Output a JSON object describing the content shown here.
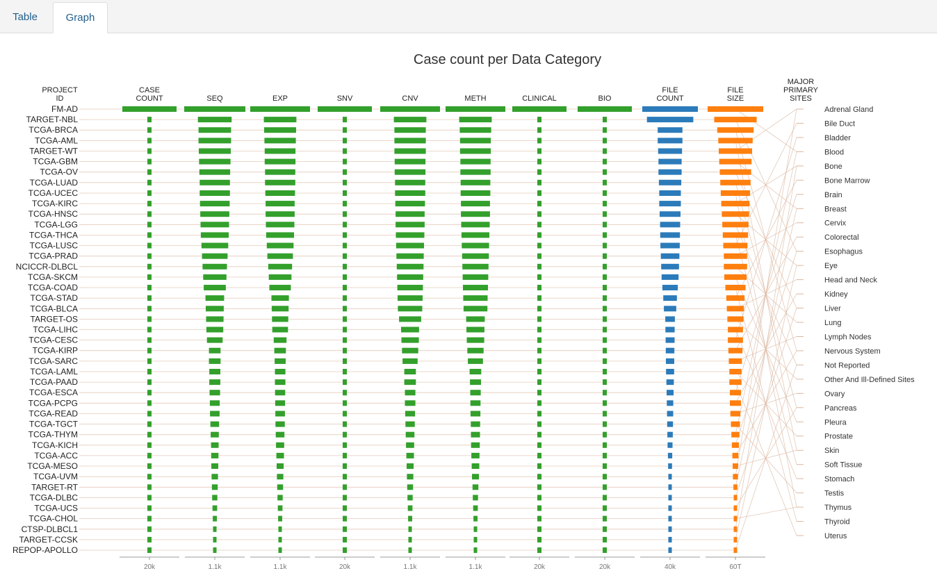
{
  "tabs": [
    {
      "label": "Table"
    },
    {
      "label": "Graph"
    }
  ],
  "chart_data": {
    "type": "parallel-coordinates",
    "title": "Case count per Data Category",
    "project_axis_title": [
      "PROJECT",
      "ID"
    ],
    "sites_axis_title": [
      "MAJOR",
      "PRIMARY",
      "SITES"
    ],
    "axes": [
      {
        "name": "CASE COUNT",
        "title": [
          "CASE",
          "COUNT"
        ],
        "color": "#33a02c",
        "scale_label": "20k"
      },
      {
        "name": "SEQ",
        "title": [
          "SEQ"
        ],
        "color": "#33a02c",
        "scale_label": "1.1k"
      },
      {
        "name": "EXP",
        "title": [
          "EXP"
        ],
        "color": "#33a02c",
        "scale_label": "1.1k"
      },
      {
        "name": "SNV",
        "title": [
          "SNV"
        ],
        "color": "#33a02c",
        "scale_label": "20k"
      },
      {
        "name": "CNV",
        "title": [
          "CNV"
        ],
        "color": "#33a02c",
        "scale_label": "1.1k"
      },
      {
        "name": "METH",
        "title": [
          "METH"
        ],
        "color": "#33a02c",
        "scale_label": "1.1k"
      },
      {
        "name": "CLINICAL",
        "title": [
          "CLINICAL"
        ],
        "color": "#33a02c",
        "scale_label": "20k"
      },
      {
        "name": "BIO",
        "title": [
          "BIO"
        ],
        "color": "#33a02c",
        "scale_label": "20k"
      },
      {
        "name": "FILE COUNT",
        "title": [
          "FILE",
          "COUNT"
        ],
        "color": "#2b7bba",
        "scale_label": "40k"
      },
      {
        "name": "FILE SIZE",
        "title": [
          "FILE",
          "SIZE"
        ],
        "color": "#ff7f0e",
        "scale_label": "60T"
      }
    ],
    "projects": [
      {
        "id": "FM-AD",
        "values": [
          18004,
          1100,
          1100,
          18004,
          1100,
          1100,
          18004,
          18004,
          36000,
          55
        ]
      },
      {
        "id": "TARGET-NBL",
        "values": [
          1120,
          580,
          560,
          1120,
          560,
          560,
          1120,
          1120,
          30000,
          42
        ]
      },
      {
        "id": "TCGA-BRCA",
        "values": [
          1098,
          560,
          550,
          1098,
          540,
          540,
          1098,
          1098,
          16000,
          36
        ]
      },
      {
        "id": "TCGA-AML",
        "values": [
          1000,
          560,
          540,
          1000,
          540,
          530,
          1000,
          1000,
          16000,
          34
        ]
      },
      {
        "id": "TARGET-WT",
        "values": [
          900,
          550,
          530,
          900,
          540,
          530,
          900,
          900,
          15500,
          33
        ]
      },
      {
        "id": "TCGA-GBM",
        "values": [
          850,
          540,
          530,
          850,
          530,
          520,
          850,
          850,
          15000,
          32
        ]
      },
      {
        "id": "TCGA-OV",
        "values": [
          800,
          530,
          520,
          800,
          530,
          520,
          800,
          800,
          15000,
          31
        ]
      },
      {
        "id": "TCGA-LUAD",
        "values": [
          780,
          520,
          520,
          780,
          520,
          510,
          780,
          780,
          14500,
          30
        ]
      },
      {
        "id": "TCGA-UCEC",
        "values": [
          760,
          520,
          510,
          760,
          520,
          510,
          760,
          760,
          14000,
          29
        ]
      },
      {
        "id": "TCGA-KIRC",
        "values": [
          740,
          510,
          500,
          740,
          510,
          500,
          740,
          740,
          14000,
          28
        ]
      },
      {
        "id": "TCGA-HNSC",
        "values": [
          720,
          500,
          500,
          720,
          500,
          500,
          720,
          720,
          13500,
          27
        ]
      },
      {
        "id": "TCGA-LGG",
        "values": [
          700,
          490,
          490,
          700,
          500,
          490,
          700,
          700,
          13000,
          26
        ]
      },
      {
        "id": "TCGA-THCA",
        "values": [
          680,
          480,
          480,
          680,
          490,
          480,
          680,
          680,
          12800,
          25
        ]
      },
      {
        "id": "TCGA-LUSC",
        "values": [
          660,
          460,
          460,
          660,
          480,
          470,
          660,
          660,
          12500,
          24
        ]
      },
      {
        "id": "TCGA-PRAD",
        "values": [
          640,
          440,
          440,
          640,
          470,
          460,
          640,
          640,
          12000,
          23
        ]
      },
      {
        "id": "NCICCR-DLBCL",
        "values": [
          620,
          420,
          410,
          620,
          460,
          450,
          620,
          620,
          11500,
          23
        ]
      },
      {
        "id": "TCGA-SKCM",
        "values": [
          600,
          400,
          390,
          600,
          450,
          440,
          600,
          600,
          11000,
          22
        ]
      },
      {
        "id": "TCGA-COAD",
        "values": [
          580,
          380,
          370,
          580,
          440,
          430,
          580,
          580,
          10000,
          20
        ]
      },
      {
        "id": "TCGA-STAD",
        "values": [
          560,
          320,
          300,
          560,
          430,
          420,
          560,
          560,
          8800,
          18
        ]
      },
      {
        "id": "TCGA-BLCA",
        "values": [
          540,
          310,
          290,
          540,
          420,
          410,
          540,
          540,
          8000,
          17
        ]
      },
      {
        "id": "TARGET-OS",
        "values": [
          520,
          300,
          280,
          520,
          380,
          320,
          520,
          520,
          6200,
          16
        ]
      },
      {
        "id": "TCGA-LIHC",
        "values": [
          500,
          290,
          270,
          500,
          310,
          310,
          500,
          500,
          6000,
          15
        ]
      },
      {
        "id": "TCGA-CESC",
        "values": [
          480,
          270,
          220,
          480,
          300,
          300,
          480,
          480,
          5800,
          15
        ]
      },
      {
        "id": "TCGA-KIRP",
        "values": [
          460,
          200,
          200,
          460,
          280,
          280,
          460,
          460,
          5600,
          14
        ]
      },
      {
        "id": "TCGA-SARC",
        "values": [
          440,
          200,
          190,
          440,
          260,
          260,
          440,
          440,
          5400,
          13
        ]
      },
      {
        "id": "TCGA-LAML",
        "values": [
          420,
          190,
          180,
          420,
          200,
          200,
          420,
          420,
          5200,
          12
        ]
      },
      {
        "id": "TCGA-PAAD",
        "values": [
          400,
          190,
          180,
          400,
          200,
          190,
          400,
          400,
          4800,
          12
        ]
      },
      {
        "id": "TCGA-ESCA",
        "values": [
          380,
          180,
          175,
          380,
          180,
          180,
          380,
          380,
          4500,
          11
        ]
      },
      {
        "id": "TCGA-PCPG",
        "values": [
          360,
          170,
          170,
          360,
          180,
          175,
          360,
          360,
          4200,
          11
        ]
      },
      {
        "id": "TCGA-READ",
        "values": [
          340,
          165,
          165,
          340,
          170,
          170,
          340,
          340,
          4000,
          10
        ]
      },
      {
        "id": "TCGA-TGCT",
        "values": [
          320,
          150,
          160,
          320,
          160,
          160,
          320,
          320,
          3800,
          9
        ]
      },
      {
        "id": "TCGA-THYM",
        "values": [
          300,
          140,
          150,
          300,
          150,
          155,
          300,
          300,
          3500,
          8
        ]
      },
      {
        "id": "TCGA-KICH",
        "values": [
          280,
          130,
          140,
          280,
          140,
          150,
          280,
          280,
          3200,
          7
        ]
      },
      {
        "id": "TCGA-ACC",
        "values": [
          260,
          125,
          130,
          260,
          130,
          140,
          260,
          260,
          2800,
          6
        ]
      },
      {
        "id": "TCGA-MESO",
        "values": [
          240,
          120,
          120,
          240,
          120,
          130,
          240,
          240,
          2500,
          5.5
        ]
      },
      {
        "id": "TCGA-UVM",
        "values": [
          220,
          110,
          110,
          220,
          110,
          120,
          220,
          220,
          2200,
          5
        ]
      },
      {
        "id": "TARGET-RT",
        "values": [
          200,
          100,
          100,
          200,
          100,
          100,
          200,
          200,
          1800,
          4
        ]
      },
      {
        "id": "TCGA-DLBC",
        "values": [
          180,
          90,
          90,
          180,
          90,
          90,
          180,
          180,
          1500,
          3.5
        ]
      },
      {
        "id": "TCGA-UCS",
        "values": [
          160,
          80,
          80,
          160,
          80,
          80,
          160,
          160,
          1200,
          3
        ]
      },
      {
        "id": "TCGA-CHOL",
        "values": [
          140,
          70,
          70,
          140,
          70,
          70,
          140,
          140,
          900,
          2.5
        ]
      },
      {
        "id": "CTSP-DLBCL1",
        "values": [
          120,
          60,
          60,
          120,
          60,
          60,
          120,
          120,
          700,
          1.5
        ]
      },
      {
        "id": "TARGET-CCSK",
        "values": [
          100,
          50,
          50,
          100,
          50,
          50,
          100,
          100,
          500,
          1
        ]
      },
      {
        "id": "REPOP-APOLLO",
        "values": [
          60,
          30,
          30,
          60,
          30,
          30,
          60,
          60,
          300,
          0.5
        ]
      }
    ],
    "sites": [
      "Adrenal Gland",
      "Bile Duct",
      "Bladder",
      "Blood",
      "Bone",
      "Bone Marrow",
      "Brain",
      "Breast",
      "Cervix",
      "Colorectal",
      "Esophagus",
      "Eye",
      "Head and Neck",
      "Kidney",
      "Liver",
      "Lung",
      "Lymph Nodes",
      "Nervous System",
      "Not Reported",
      "Other And Ill-Defined Sites",
      "Ovary",
      "Pancreas",
      "Pleura",
      "Prostate",
      "Skin",
      "Soft Tissue",
      "Stomach",
      "Testis",
      "Thymus",
      "Thyroid",
      "Uterus"
    ],
    "line_color": "#d9b7a0"
  }
}
